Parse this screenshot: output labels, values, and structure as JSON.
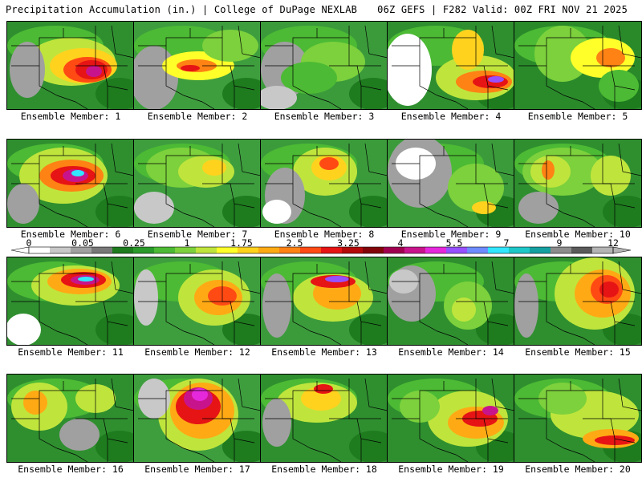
{
  "header": {
    "left_title": "Precipitation Accumulation (in.) | College of DuPage NEXLAB",
    "right_title": "06Z GEFS | F282 Valid: 00Z FRI NOV 21 2025"
  },
  "legend": {
    "labels": [
      "0",
      "0.05",
      "0.25",
      "1",
      "1.75",
      "2.5",
      "3.25",
      "4",
      "5.5",
      "7",
      "9",
      "12"
    ],
    "colors": [
      "#ffffff",
      "#c8c8c8",
      "#a0a0a0",
      "#787878",
      "#1e7b1e",
      "#2a9a2a",
      "#4cba34",
      "#7cd13c",
      "#bfe53c",
      "#ffff2a",
      "#ffd21e",
      "#ffaa14",
      "#ff8214",
      "#ff4a14",
      "#e61414",
      "#b40a0a",
      "#82050a",
      "#a00050",
      "#c8148c",
      "#e628dc",
      "#9650ff",
      "#6e8cff",
      "#32e6ff",
      "#1ec8c8",
      "#14a0a0",
      "#8c8c8c",
      "#5a5a5a",
      "#b4b4b4"
    ]
  },
  "panels": [
    {
      "label": "Ensemble Member: 1",
      "bg": "#2f8f2f",
      "blobs": [
        [
          "#bfe53c",
          80,
          50,
          55,
          30
        ],
        [
          "#ffd21e",
          95,
          55,
          42,
          22
        ],
        [
          "#ff4a14",
          100,
          60,
          30,
          16
        ],
        [
          "#e61414",
          105,
          60,
          20,
          12
        ],
        [
          "#c8148c",
          108,
          62,
          10,
          7
        ],
        [
          "#a0a0a0",
          25,
          60,
          22,
          35
        ]
      ]
    },
    {
      "label": "Ensemble Member: 2",
      "bg": "#3e9e3e",
      "blobs": [
        [
          "#a0a0a0",
          25,
          70,
          30,
          40
        ],
        [
          "#ffff2a",
          80,
          55,
          45,
          18
        ],
        [
          "#ff8214",
          78,
          55,
          25,
          8
        ],
        [
          "#e61414",
          70,
          58,
          12,
          4
        ],
        [
          "#7cd13c",
          120,
          30,
          35,
          20
        ]
      ]
    },
    {
      "label": "Ensemble Member: 3",
      "bg": "#3b9b3b",
      "blobs": [
        [
          "#a0a0a0",
          30,
          60,
          30,
          35
        ],
        [
          "#7cd13c",
          90,
          50,
          40,
          25
        ],
        [
          "#4cba34",
          60,
          70,
          35,
          20
        ],
        [
          "#c8c8c8",
          20,
          95,
          25,
          15
        ]
      ]
    },
    {
      "label": "Ensemble Member: 4",
      "bg": "#2f8f2f",
      "blobs": [
        [
          "#ffffff",
          25,
          60,
          30,
          45
        ],
        [
          "#bfe53c",
          110,
          70,
          50,
          28
        ],
        [
          "#ff8214",
          120,
          75,
          35,
          14
        ],
        [
          "#e61414",
          128,
          75,
          22,
          8
        ],
        [
          "#9650ff",
          135,
          72,
          10,
          4
        ],
        [
          "#ffd21e",
          100,
          35,
          20,
          25
        ]
      ]
    },
    {
      "label": "Ensemble Member: 5",
      "bg": "#2a8a2a",
      "blobs": [
        [
          "#7cd13c",
          60,
          40,
          35,
          35
        ],
        [
          "#ffff2a",
          110,
          45,
          40,
          25
        ],
        [
          "#ff8214",
          120,
          45,
          18,
          12
        ],
        [
          "#4cba34",
          130,
          80,
          25,
          20
        ]
      ]
    },
    {
      "label": "Ensemble Member: 6",
      "bg": "#2f8f2f",
      "blobs": [
        [
          "#bfe53c",
          70,
          45,
          55,
          35
        ],
        [
          "#ff8214",
          80,
          45,
          40,
          20
        ],
        [
          "#e61414",
          82,
          45,
          28,
          12
        ],
        [
          "#c8148c",
          85,
          45,
          16,
          8
        ],
        [
          "#32e6ff",
          88,
          42,
          8,
          4
        ],
        [
          "#a0a0a0",
          20,
          80,
          20,
          25
        ]
      ]
    },
    {
      "label": "Ensemble Member: 7",
      "bg": "#3e9e3e",
      "blobs": [
        [
          "#7cd13c",
          60,
          35,
          45,
          25
        ],
        [
          "#bfe53c",
          90,
          40,
          35,
          20
        ],
        [
          "#ffd21e",
          100,
          35,
          15,
          10
        ],
        [
          "#c8c8c8",
          25,
          85,
          25,
          20
        ]
      ]
    },
    {
      "label": "Ensemble Member: 8",
      "bg": "#3b9b3b",
      "blobs": [
        [
          "#bfe53c",
          80,
          40,
          40,
          30
        ],
        [
          "#ffd21e",
          85,
          35,
          22,
          16
        ],
        [
          "#ff4a14",
          85,
          30,
          12,
          8
        ],
        [
          "#a0a0a0",
          30,
          70,
          25,
          35
        ],
        [
          "#ffffff",
          20,
          90,
          18,
          15
        ]
      ]
    },
    {
      "label": "Ensemble Member: 9",
      "bg": "#3b9b3b",
      "blobs": [
        [
          "#a0a0a0",
          40,
          40,
          40,
          45
        ],
        [
          "#ffffff",
          35,
          30,
          25,
          20
        ],
        [
          "#7cd13c",
          110,
          60,
          35,
          30
        ],
        [
          "#ffd21e",
          120,
          85,
          15,
          8
        ]
      ]
    },
    {
      "label": "Ensemble Member: 10",
      "bg": "#2f8f2f",
      "blobs": [
        [
          "#7cd13c",
          60,
          40,
          50,
          30
        ],
        [
          "#bfe53c",
          45,
          40,
          25,
          20
        ],
        [
          "#ff8214",
          42,
          38,
          8,
          12
        ],
        [
          "#bfe53c",
          120,
          45,
          25,
          25
        ],
        [
          "#a0a0a0",
          30,
          85,
          25,
          20
        ]
      ]
    },
    {
      "label": "Ensemble Member: 11",
      "bg": "#2f8f2f",
      "blobs": [
        [
          "#bfe53c",
          85,
          35,
          55,
          25
        ],
        [
          "#ffaa14",
          90,
          30,
          40,
          16
        ],
        [
          "#e61414",
          95,
          28,
          28,
          10
        ],
        [
          "#c8148c",
          97,
          28,
          18,
          6
        ],
        [
          "#32e6ff",
          98,
          27,
          10,
          3
        ],
        [
          "#ffffff",
          20,
          90,
          22,
          20
        ]
      ]
    },
    {
      "label": "Ensemble Member: 12",
      "bg": "#3e9e3e",
      "blobs": [
        [
          "#bfe53c",
          100,
          50,
          45,
          35
        ],
        [
          "#ffaa14",
          105,
          50,
          30,
          22
        ],
        [
          "#ff4a14",
          110,
          48,
          18,
          12
        ],
        [
          "#c8c8c8",
          15,
          50,
          15,
          35
        ]
      ]
    },
    {
      "label": "Ensemble Member: 13",
      "bg": "#3b9b3b",
      "blobs": [
        [
          "#bfe53c",
          90,
          50,
          50,
          30
        ],
        [
          "#ffaa14",
          95,
          45,
          30,
          20
        ],
        [
          "#e61414",
          90,
          30,
          28,
          8
        ],
        [
          "#9650ff",
          95,
          27,
          15,
          4
        ],
        [
          "#a0a0a0",
          20,
          60,
          18,
          40
        ]
      ]
    },
    {
      "label": "Ensemble Member: 14",
      "bg": "#2f8f2f",
      "blobs": [
        [
          "#a0a0a0",
          30,
          45,
          30,
          35
        ],
        [
          "#c8c8c8",
          20,
          30,
          18,
          15
        ],
        [
          "#7cd13c",
          100,
          60,
          30,
          30
        ],
        [
          "#bfe53c",
          95,
          65,
          15,
          15
        ]
      ]
    },
    {
      "label": "Ensemble Member: 15",
      "bg": "#2f8f2f",
      "blobs": [
        [
          "#bfe53c",
          100,
          45,
          50,
          45
        ],
        [
          "#ffaa14",
          110,
          45,
          35,
          30
        ],
        [
          "#ff4a14",
          115,
          40,
          20,
          18
        ],
        [
          "#e61414",
          118,
          40,
          12,
          10
        ],
        [
          "#a0a0a0",
          15,
          60,
          15,
          40
        ]
      ]
    },
    {
      "label": "Ensemble Member: 16",
      "bg": "#2f8f2f",
      "blobs": [
        [
          "#bfe53c",
          40,
          40,
          35,
          30
        ],
        [
          "#ffaa14",
          35,
          35,
          15,
          15
        ],
        [
          "#ff4a14",
          110,
          25,
          15,
          10
        ],
        [
          "#bfe53c",
          110,
          30,
          25,
          18
        ],
        [
          "#a0a0a0",
          90,
          75,
          25,
          20
        ]
      ]
    },
    {
      "label": "Ensemble Member: 17",
      "bg": "#3e9e3e",
      "blobs": [
        [
          "#bfe53c",
          80,
          50,
          50,
          45
        ],
        [
          "#ffaa14",
          85,
          45,
          40,
          35
        ],
        [
          "#e61414",
          80,
          40,
          28,
          22
        ],
        [
          "#c8148c",
          80,
          30,
          18,
          14
        ],
        [
          "#e628dc",
          82,
          25,
          10,
          8
        ],
        [
          "#c8c8c8",
          25,
          30,
          20,
          25
        ]
      ]
    },
    {
      "label": "Ensemble Member: 18",
      "bg": "#2f8f2f",
      "blobs": [
        [
          "#bfe53c",
          70,
          35,
          50,
          25
        ],
        [
          "#ffd21e",
          75,
          30,
          25,
          15
        ],
        [
          "#e61414",
          78,
          18,
          12,
          6
        ],
        [
          "#a0a0a0",
          20,
          60,
          18,
          30
        ]
      ]
    },
    {
      "label": "Ensemble Member: 19",
      "bg": "#2f8f2f",
      "blobs": [
        [
          "#bfe53c",
          100,
          55,
          50,
          35
        ],
        [
          "#ffaa14",
          110,
          60,
          35,
          20
        ],
        [
          "#e61414",
          115,
          55,
          22,
          10
        ],
        [
          "#c8148c",
          128,
          45,
          10,
          6
        ],
        [
          "#7cd13c",
          40,
          40,
          25,
          20
        ]
      ]
    },
    {
      "label": "Ensemble Member: 20",
      "bg": "#2f8f2f",
      "blobs": [
        [
          "#bfe53c",
          100,
          50,
          55,
          30
        ],
        [
          "#ffaa14",
          120,
          80,
          35,
          12
        ],
        [
          "#e61414",
          125,
          82,
          25,
          6
        ],
        [
          "#7cd13c",
          60,
          30,
          30,
          20
        ]
      ]
    }
  ]
}
